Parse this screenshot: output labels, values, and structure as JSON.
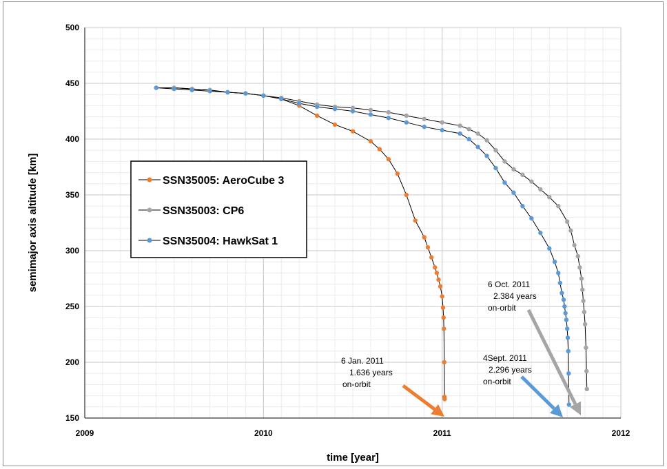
{
  "chart_data": {
    "type": "scatter",
    "xlabel": "time [year]",
    "ylabel": "semimajor axis altitude [km]",
    "xlim": [
      2009,
      2012
    ],
    "ylim": [
      150,
      500
    ],
    "x_ticks": [
      2009,
      2010,
      2011,
      2012
    ],
    "y_ticks": [
      150,
      200,
      250,
      300,
      350,
      400,
      450,
      500
    ],
    "grid": true,
    "legend_position": "left",
    "series": [
      {
        "name": "SSN35005:  AeroCube 3",
        "color": "#ED7D31",
        "x": [
          2009.4,
          2009.5,
          2009.6,
          2009.7,
          2009.8,
          2009.9,
          2010.0,
          2010.1,
          2010.2,
          2010.3,
          2010.4,
          2010.5,
          2010.6,
          2010.65,
          2010.7,
          2010.75,
          2010.8,
          2010.85,
          2010.9,
          2010.92,
          2010.94,
          2010.96,
          2010.97,
          2010.98,
          2010.99,
          2011.0,
          2011.005,
          2011.008,
          2011.01,
          2011.012,
          2011.013,
          2011.014
        ],
        "values": [
          446,
          446,
          445,
          444,
          442,
          441,
          439,
          436,
          430,
          421,
          413,
          407,
          398,
          391,
          382,
          369,
          350,
          327,
          312,
          303,
          294,
          285,
          280,
          274,
          268,
          259,
          249,
          240,
          230,
          200,
          169,
          167
        ]
      },
      {
        "name": "SSN35003:  CP6",
        "color": "#A5A5A5",
        "x": [
          2009.4,
          2009.5,
          2009.6,
          2009.7,
          2009.8,
          2009.9,
          2010.0,
          2010.1,
          2010.2,
          2010.3,
          2010.4,
          2010.5,
          2010.6,
          2010.7,
          2010.8,
          2010.9,
          2011.0,
          2011.1,
          2011.15,
          2011.2,
          2011.25,
          2011.3,
          2011.35,
          2011.4,
          2011.45,
          2011.5,
          2011.55,
          2011.6,
          2011.65,
          2011.7,
          2011.72,
          2011.74,
          2011.76,
          2011.77,
          2011.78,
          2011.785,
          2011.79,
          2011.795,
          2011.8,
          2011.805,
          2011.808,
          2011.81
        ],
        "values": [
          446,
          446,
          445,
          444,
          442,
          441,
          439,
          437,
          434,
          431,
          429,
          428,
          426,
          424,
          421,
          418,
          415,
          412,
          409,
          405,
          399,
          390,
          380,
          373,
          368,
          362,
          355,
          348,
          340,
          326,
          318,
          305,
          295,
          285,
          275,
          265,
          255,
          245,
          234,
          213,
          192,
          176
        ]
      },
      {
        "name": "SSN35004:  HawkSat 1",
        "color": "#5B9BD5",
        "x": [
          2009.4,
          2009.5,
          2009.6,
          2009.7,
          2009.8,
          2009.9,
          2010.0,
          2010.1,
          2010.2,
          2010.3,
          2010.4,
          2010.5,
          2010.6,
          2010.7,
          2010.8,
          2010.9,
          2011.0,
          2011.1,
          2011.15,
          2011.2,
          2011.25,
          2011.3,
          2011.35,
          2011.4,
          2011.45,
          2011.5,
          2011.55,
          2011.6,
          2011.63,
          2011.65,
          2011.66,
          2011.67,
          2011.68,
          2011.685,
          2011.69,
          2011.695,
          2011.7,
          2011.703,
          2011.706,
          2011.708,
          2011.71
        ],
        "values": [
          446,
          445,
          444,
          443,
          442,
          441,
          439,
          436,
          432,
          429,
          427,
          425,
          422,
          419,
          415,
          411,
          408,
          405,
          400,
          393,
          385,
          374,
          361,
          352,
          340,
          329,
          316,
          302,
          290,
          280,
          271,
          262,
          256,
          250,
          244,
          238,
          230,
          222,
          210,
          190,
          162
        ]
      }
    ],
    "annotations": [
      {
        "lines": [
          "6 Jan. 2011",
          "1.636 years",
          "on-orbit"
        ],
        "color": "#ED7D31",
        "points_to": {
          "x": 2011.01,
          "y": 150
        }
      },
      {
        "lines": [
          "6 Oct. 2011",
          "2.384 years",
          "on-orbit"
        ],
        "color": "#A5A5A5",
        "points_to": {
          "x": 2011.77,
          "y": 150
        }
      },
      {
        "lines": [
          "4Sept. 2011",
          "2.296 years",
          "on-orbit"
        ],
        "color": "#5B9BD5",
        "points_to": {
          "x": 2011.68,
          "y": 150
        }
      }
    ]
  }
}
